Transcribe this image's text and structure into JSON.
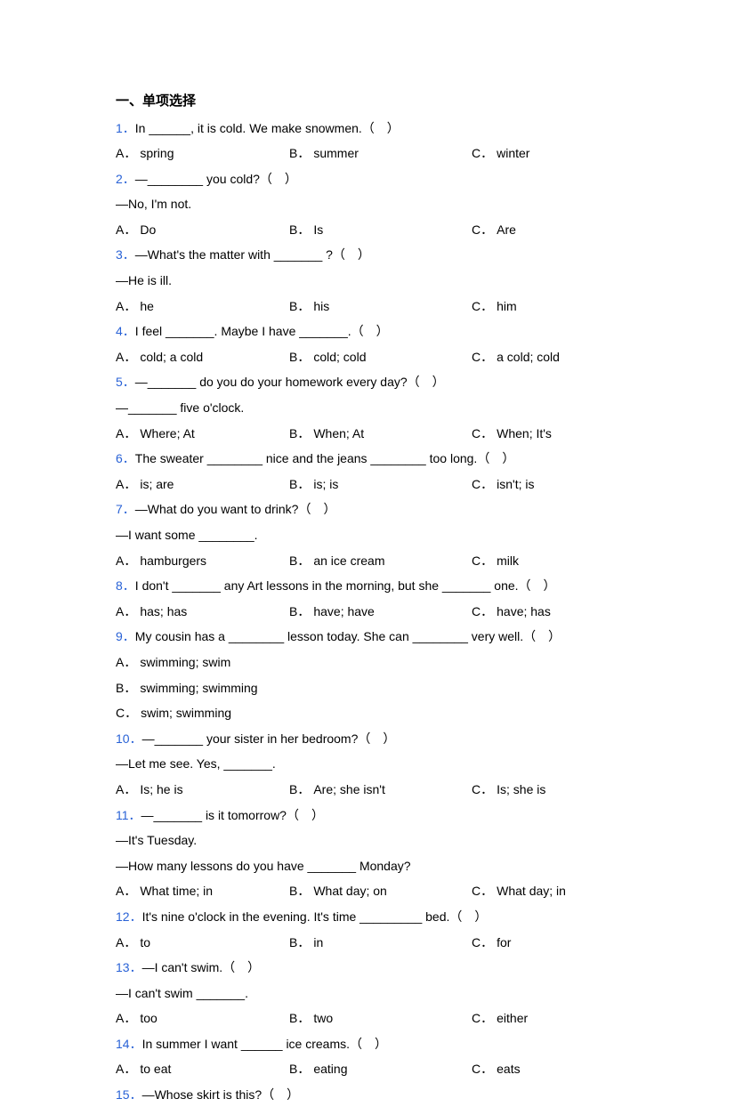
{
  "section_title": "一、单项选择",
  "questions": [
    {
      "num": "1．",
      "text": "In ______, it is cold. We make snowmen.（　）",
      "options": {
        "A": "spring",
        "B": "summer",
        "C": "winter"
      }
    },
    {
      "num": "2．",
      "text": "—________ you cold?（　）",
      "followup": "—No, I'm not.",
      "options": {
        "A": "Do",
        "B": "Is",
        "C": "Are"
      }
    },
    {
      "num": "3．",
      "text": "—What's the matter with _______ ?（　）",
      "followup": "—He is ill.",
      "options": {
        "A": "he",
        "B": "his",
        "C": "him"
      }
    },
    {
      "num": "4．",
      "text": "I feel _______. Maybe I have _______.（　）",
      "options": {
        "A": "cold; a cold",
        "B": "cold; cold",
        "C": "a cold; cold"
      }
    },
    {
      "num": "5．",
      "text": "—_______ do you do your homework every day?（　）",
      "followup": "—_______ five o'clock.",
      "options": {
        "A": "Where; At",
        "B": "When; At",
        "C": "When; It's"
      }
    },
    {
      "num": "6．",
      "text": "The sweater ________ nice and the jeans ________ too long.（　）",
      "options": {
        "A": "is; are",
        "B": "is; is",
        "C": "isn't; is"
      }
    },
    {
      "num": "7．",
      "text": "—What do you want to drink?（　）",
      "followup": "—I want some ________.",
      "options": {
        "A": "hamburgers",
        "B": "an ice cream",
        "C": "milk"
      }
    },
    {
      "num": "8．",
      "text": "I don't _______ any Art lessons in the morning, but she _______ one.（　）",
      "options": {
        "A": "has; has",
        "B": "have; have",
        "C": "have; has"
      }
    },
    {
      "num": "9．",
      "text": "My cousin has a ________ lesson today. She can ________ very well.（　）",
      "stacked_options": {
        "A": "swimming; swim",
        "B": "swimming; swimming",
        "C": "swim; swimming"
      }
    },
    {
      "num": "10．",
      "text": "—_______ your sister in her bedroom?（　）",
      "followup": "—Let me see. Yes, _______.",
      "options": {
        "A": "Is; he is",
        "B": "Are; she isn't",
        "C": "Is; she is"
      }
    },
    {
      "num": "11．",
      "text": "—_______ is it tomorrow?（　）",
      "followup": "—It's Tuesday.",
      "followup2": "—How many lessons do you have _______ Monday?",
      "options": {
        "A": "What time; in",
        "B": "What day; on",
        "C": "What day; in"
      }
    },
    {
      "num": "12．",
      "text": "It's nine o'clock in the evening. It's time _________ bed.（　）",
      "options": {
        "A": "to",
        "B": "in",
        "C": "for"
      }
    },
    {
      "num": "13．",
      "text": "—I can't swim.（　）",
      "followup": "—I can't swim _______.",
      "options": {
        "A": "too",
        "B": "two",
        "C": "either"
      }
    },
    {
      "num": "14．",
      "text": "In summer I want ______ ice creams.（　）",
      "options": {
        "A": "to eat",
        "B": "eating",
        "C": "eats"
      }
    },
    {
      "num": "15．",
      "text": "—Whose skirt is this?（　）"
    }
  ]
}
